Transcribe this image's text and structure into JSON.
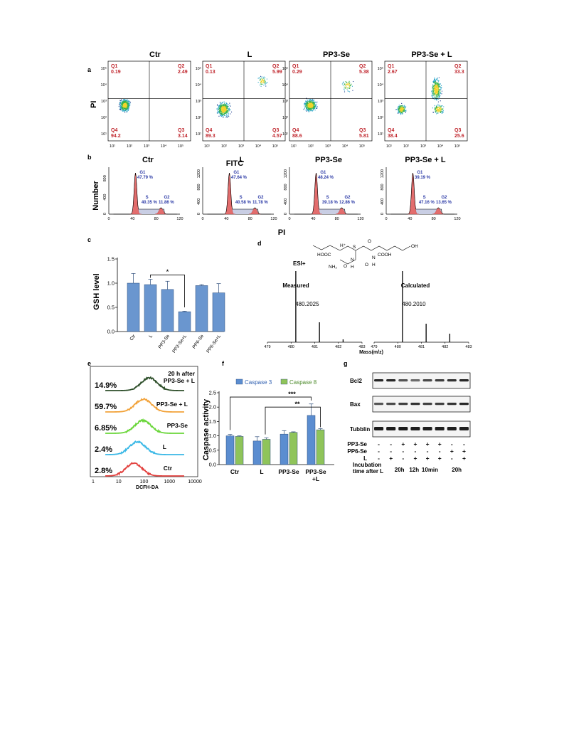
{
  "panel_a": {
    "letter": "a",
    "ylabel": "PI",
    "xlabel": "FITC",
    "tick_labels": [
      "10¹",
      "10²",
      "10³",
      "10⁴",
      "10⁵"
    ],
    "plots": [
      {
        "title": "Ctr",
        "q1": "Q1",
        "q1v": "0.19",
        "q2": "Q2",
        "q2v": "2.49",
        "q3": "Q3",
        "q3v": "3.14",
        "q4": "Q4",
        "q4v": "94.2"
      },
      {
        "title": "L",
        "q1": "Q1",
        "q1v": "0.13",
        "q2": "Q2",
        "q2v": "5.99",
        "q3": "Q3",
        "q3v": "4.57",
        "q4": "Q4",
        "q4v": "89.3"
      },
      {
        "title": "PP3-Se",
        "q1": "Q1",
        "q1v": "0.29",
        "q2": "Q2",
        "q2v": "5.38",
        "q3": "Q3",
        "q3v": "5.81",
        "q4": "Q4",
        "q4v": "88.6"
      },
      {
        "title": "PP3-Se + L",
        "q1": "Q1",
        "q1v": "2.67",
        "q2": "Q2",
        "q2v": "33.3",
        "q3": "Q3",
        "q3v": "25.6",
        "q4": "Q4",
        "q4v": "38.4"
      }
    ]
  },
  "panel_b": {
    "letter": "b",
    "ylabel": "Number",
    "xlabel": "PI",
    "xticks": [
      "0",
      "40",
      "80",
      "120"
    ],
    "plots": [
      {
        "title": "Ctr",
        "g1": "G1",
        "g1v": "47.79 %",
        "s": "S",
        "sv": "40.35 %",
        "g2": "G2",
        "g2v": "11.86 %",
        "yticks": [
          "0",
          "400",
          "800"
        ]
      },
      {
        "title": "L",
        "g1": "G1",
        "g1v": "47.64 %",
        "s": "S",
        "sv": "40.58 %",
        "g2": "G2",
        "g2v": "11.78 %",
        "yticks": [
          "0",
          "400",
          "800",
          "1200"
        ]
      },
      {
        "title": "PP3-Se",
        "g1": "G1",
        "g1v": "48.24 %",
        "s": "S",
        "sv": "39.18 %",
        "g2": "G2",
        "g2v": "12.86 %",
        "yticks": [
          "0",
          "400",
          "800",
          "1200"
        ]
      },
      {
        "title": "PP3-Se + L",
        "g1": "G1",
        "g1v": "39.19 %",
        "s": "S",
        "sv": "47.16 %",
        "g2": "G2",
        "g2v": "13.65 %",
        "yticks": [
          "0",
          "400",
          "800",
          "1200"
        ]
      }
    ]
  },
  "chart_data": [
    {
      "type": "bar",
      "panel": "c",
      "ylabel": "GSH level",
      "categories": [
        "Ctr",
        "L",
        "PP3-Se",
        "PP3-Se+L",
        "PP6-Se",
        "PP6-Se+L"
      ],
      "values": [
        1.0,
        0.97,
        0.87,
        0.41,
        0.95,
        0.8
      ],
      "errors": [
        0.2,
        0.11,
        0.17,
        0.01,
        0.02,
        0.19
      ],
      "ylim": [
        0,
        1.5
      ],
      "yticks": [
        "0.0",
        "0.5",
        "1.0",
        "1.5"
      ],
      "significance": "*",
      "color": "#6a96cf"
    },
    {
      "type": "bar",
      "panel": "f",
      "ylabel": "Caspase activity",
      "categories": [
        "Ctr",
        "L",
        "PP3-Se",
        "PP3-Se +L"
      ],
      "series": [
        {
          "name": "Caspase 3",
          "values": [
            1.0,
            0.82,
            1.06,
            1.71
          ],
          "errors": [
            0.05,
            0.15,
            0.12,
            0.4
          ],
          "color": "#5b8dd0"
        },
        {
          "name": "Caspase 8",
          "values": [
            0.98,
            0.88,
            1.12,
            1.21
          ],
          "errors": [
            0.02,
            0.05,
            0.02,
            0.04
          ],
          "color": "#8fc45a"
        }
      ],
      "ylim": [
        0,
        2.5
      ],
      "yticks": [
        "0.0",
        "0.5",
        "1.0",
        "1.5",
        "2.0",
        "2.5"
      ],
      "significance": [
        "***",
        "**"
      ],
      "legend": "top"
    }
  ],
  "panel_c": {
    "letter": "c"
  },
  "panel_f": {
    "letter": "f"
  },
  "panel_d": {
    "letter": "d",
    "ion": "ESI+",
    "hplus": "H⁺",
    "chem": [
      "S",
      "O",
      "OH",
      "HOOC",
      "NH₂",
      "O",
      "N",
      "H",
      "O",
      "N",
      "H",
      "COOH"
    ],
    "measured_title": "Measured",
    "calculated_title": "Calculated",
    "measured_peak": "480.2025",
    "calculated_peak": "480.2010",
    "xticks": [
      "479",
      "480",
      "481",
      "482",
      "483"
    ],
    "xlabel": "Mass(m/z)"
  },
  "panel_e": {
    "letter": "e",
    "xlabel": "DCFH-DA",
    "xticks": [
      "1",
      "10",
      "100",
      "1000",
      "10000"
    ],
    "traces": [
      {
        "pct": "14.9%",
        "label": "20 h after",
        "label2": "PP3-Se + L",
        "color": "#2e4f2a"
      },
      {
        "pct": "59.7%",
        "label": "PP3-Se + L",
        "color": "#f2a33b"
      },
      {
        "pct": "6.85%",
        "label": "PP3-Se",
        "color": "#6ad63a"
      },
      {
        "pct": "2.4%",
        "label": "L",
        "color": "#3ab8e6"
      },
      {
        "pct": "2.8%",
        "label": "Ctr",
        "color": "#e2413e"
      }
    ]
  },
  "panel_g": {
    "letter": "g",
    "bands": [
      "Bcl2",
      "Bax",
      "Tubblin"
    ],
    "row_labels": [
      "PP3-Se",
      "PP6-Se",
      "L",
      "Incubation",
      "time after L"
    ],
    "rows": [
      [
        "-",
        "-",
        "+",
        "+",
        "+",
        "+",
        "-",
        "-"
      ],
      [
        "-",
        "-",
        "-",
        "-",
        "-",
        "-",
        "+",
        "+"
      ],
      [
        "-",
        "+",
        "-",
        "+",
        "+",
        "+",
        "-",
        "+"
      ]
    ],
    "times": [
      "20h",
      "12h",
      "10min",
      "20h"
    ]
  }
}
